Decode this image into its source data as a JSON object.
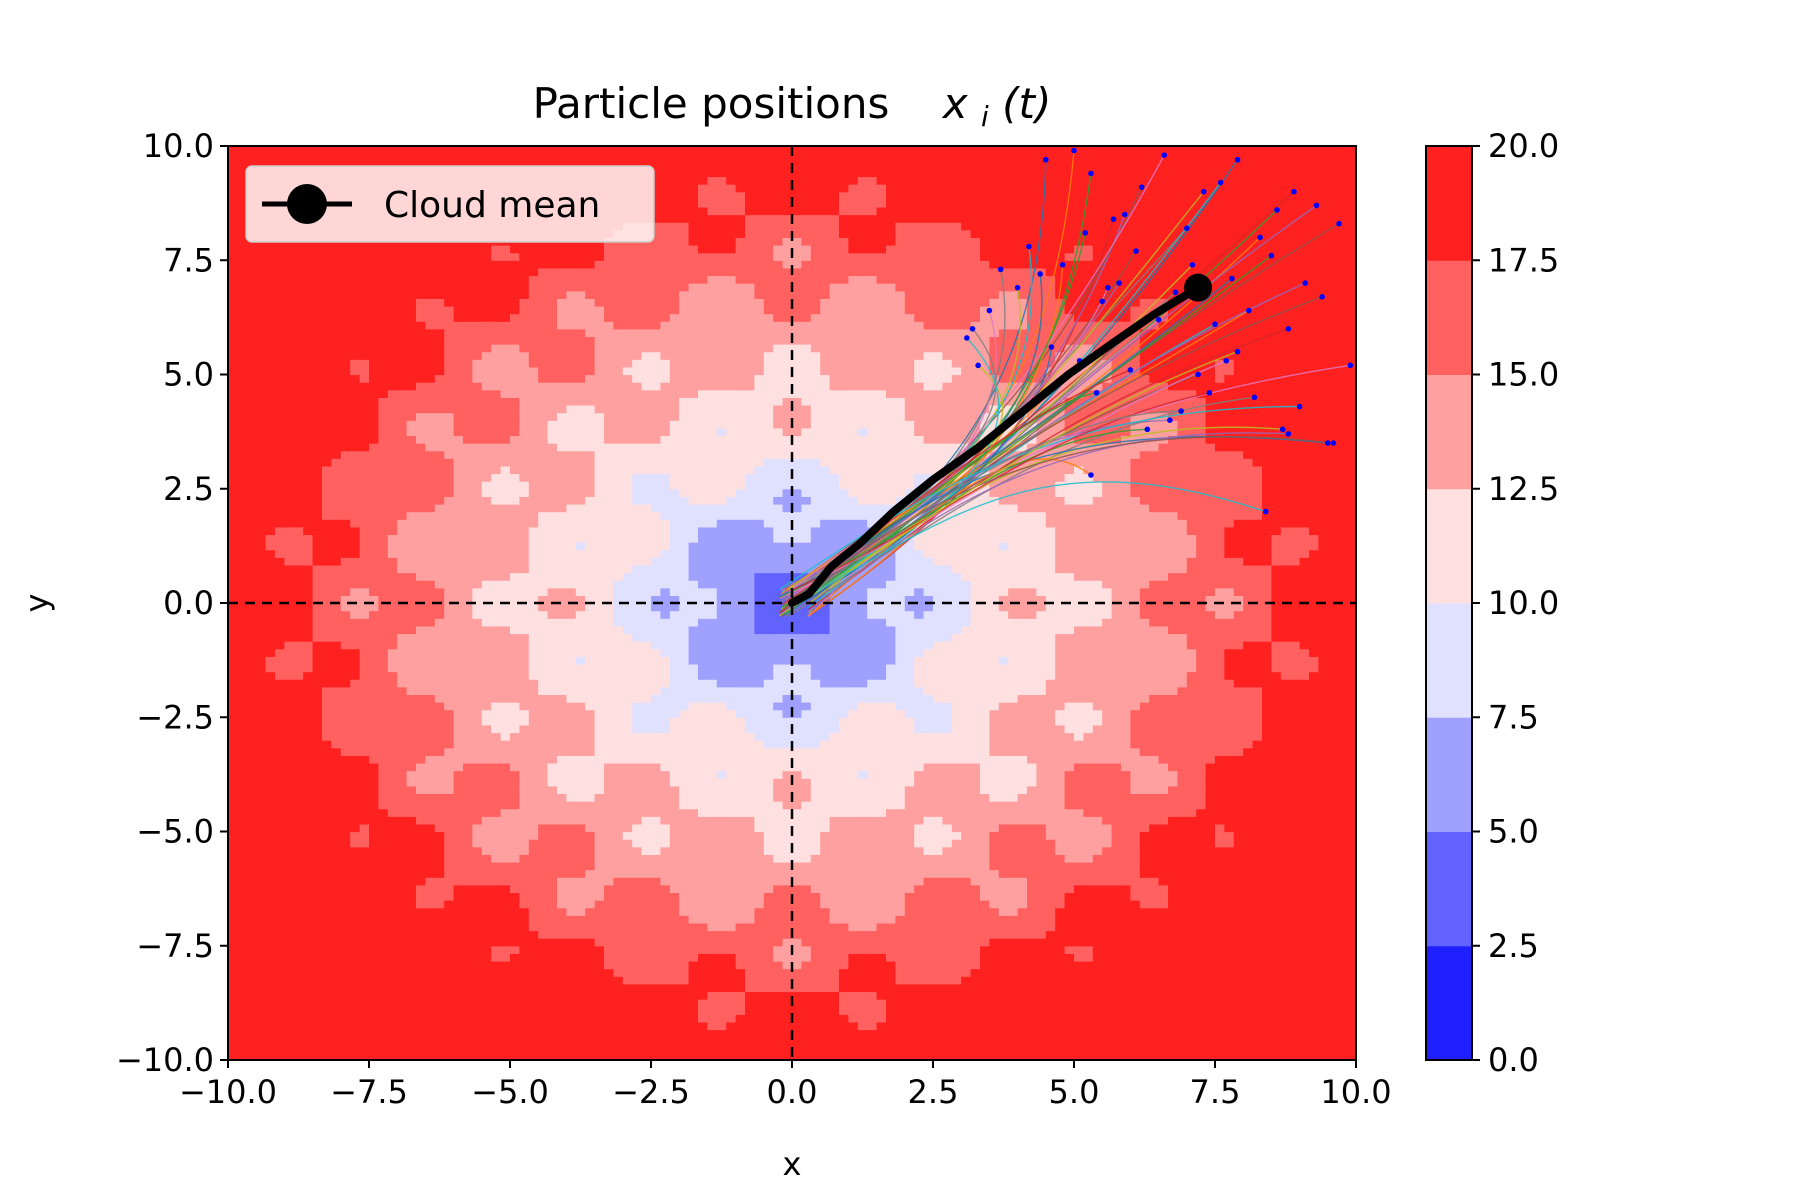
{
  "chart_data": {
    "type": "heatmap",
    "title_main": "Particle positions",
    "title_math": "x",
    "title_sub": "i",
    "title_arg": "(t)",
    "xlabel": "x",
    "ylabel": "y",
    "xlim": [
      -10,
      10
    ],
    "ylim": [
      -10,
      10
    ],
    "x_ticks": [
      "−10.0",
      "−7.5",
      "−5.0",
      "−2.5",
      "0.0",
      "2.5",
      "5.0",
      "7.5",
      "10.0"
    ],
    "y_ticks": [
      "−10.0",
      "−7.5",
      "−5.0",
      "−2.5",
      "0.0",
      "2.5",
      "5.0",
      "7.5",
      "10.0"
    ],
    "colorbar": {
      "levels": [
        0,
        2.5,
        5,
        7.5,
        10,
        12.5,
        15,
        17.5,
        20
      ],
      "tick_labels": [
        "0.0",
        "2.5",
        "5.0",
        "7.5",
        "10.0",
        "12.5",
        "15.0",
        "17.5",
        "20.0"
      ],
      "colors": [
        "#2020ff",
        "#6262ff",
        "#a0a0ff",
        "#e0e0ff",
        "#ffe0e0",
        "#ffa0a0",
        "#ff6060",
        "#ff2020"
      ]
    },
    "reference_lines": {
      "x": 0,
      "y": 0,
      "style": "dashed",
      "color": "#000000"
    },
    "grid": false,
    "legend": {
      "position": "top-left",
      "entries": [
        "Cloud mean"
      ]
    },
    "series": [
      {
        "name": "Cloud mean",
        "color": "#000000",
        "marker": "circle-at-end",
        "x": [
          0,
          0.3,
          0.7,
          1.2,
          1.8,
          2.5,
          3.3,
          4.1,
          4.9,
          5.7,
          6.4,
          7.2
        ],
        "y": [
          0,
          0.2,
          0.8,
          1.3,
          2.0,
          2.7,
          3.4,
          4.2,
          5.0,
          5.7,
          6.3,
          6.9
        ]
      }
    ],
    "particle_endpoints": {
      "color": "#0000ff",
      "x": [
        4.5,
        5.0,
        5.3,
        5.7,
        5.9,
        6.2,
        6.6,
        7.0,
        7.3,
        7.6,
        7.9,
        8.3,
        8.6,
        8.9,
        9.3,
        9.7,
        3.5,
        3.7,
        4.0,
        4.2,
        4.4,
        4.8,
        5.2,
        5.5,
        5.8,
        6.1,
        6.5,
        6.8,
        7.1,
        7.5,
        7.8,
        8.1,
        8.5,
        8.8,
        9.1,
        9.4,
        9.9,
        3.2,
        3.3,
        3.1,
        4.6,
        5.1,
        5.4,
        6.0,
        6.7,
        7.2,
        7.7,
        8.2,
        8.7,
        9.0,
        9.5,
        5.3,
        6.3,
        7.4,
        8.8,
        9.6,
        5.6,
        6.9,
        7.9,
        8.4
      ],
      "y": [
        9.7,
        9.9,
        9.4,
        8.4,
        8.5,
        9.1,
        9.8,
        8.2,
        9.0,
        9.2,
        9.7,
        8.0,
        8.6,
        9.0,
        8.7,
        8.3,
        6.4,
        7.3,
        6.9,
        7.8,
        7.2,
        7.4,
        8.1,
        6.6,
        7.0,
        7.7,
        6.2,
        6.8,
        7.4,
        6.1,
        7.1,
        6.4,
        7.6,
        6.0,
        7.0,
        6.7,
        5.2,
        6.0,
        5.2,
        5.8,
        5.6,
        5.3,
        4.6,
        5.1,
        4.0,
        5.0,
        5.3,
        4.5,
        3.8,
        4.3,
        3.5,
        2.8,
        3.8,
        4.6,
        3.7,
        3.5,
        6.9,
        4.2,
        5.5,
        2.0
      ]
    }
  }
}
